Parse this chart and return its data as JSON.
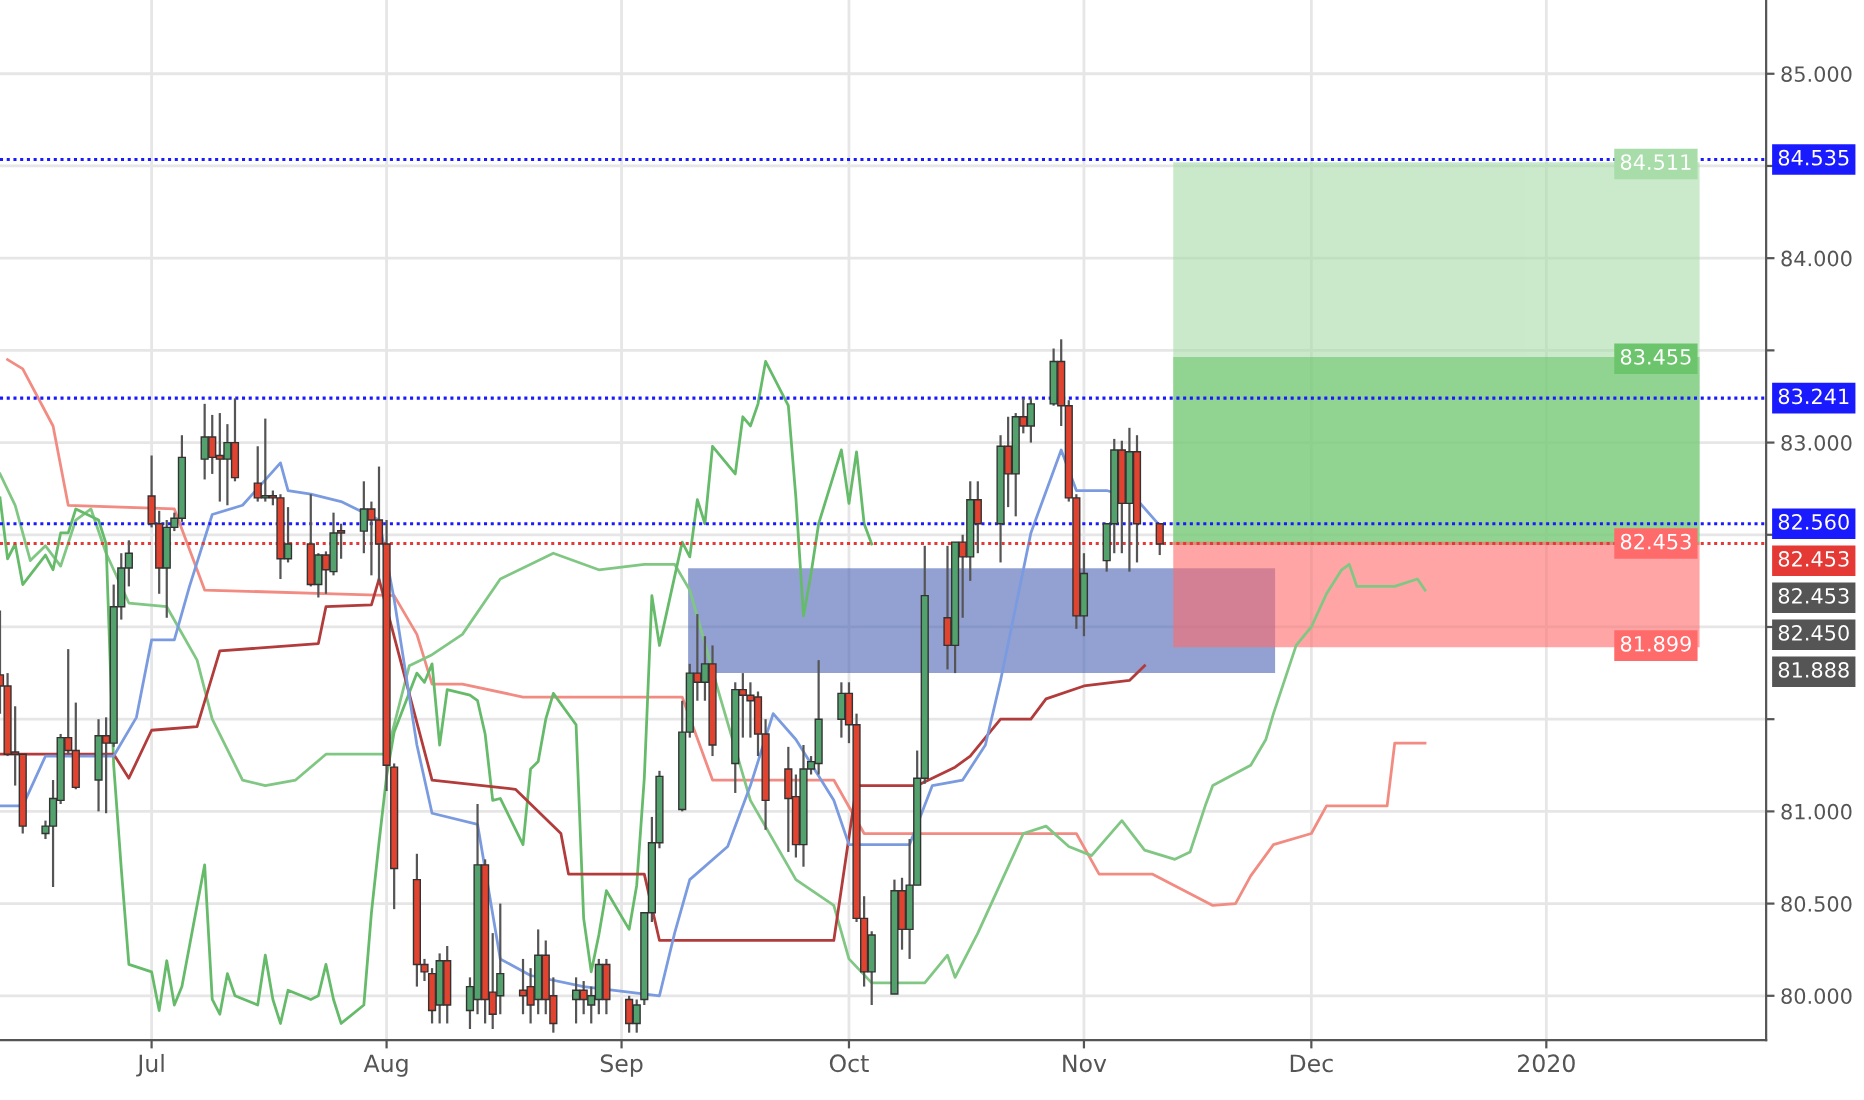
{
  "chart_data": {
    "type": "candlestick",
    "x": [
      "2019-06-11",
      "2019-06-12",
      "2019-06-13",
      "2019-06-14",
      "2019-06-17",
      "2019-06-18",
      "2019-06-19",
      "2019-06-20",
      "2019-06-21",
      "2019-06-24",
      "2019-06-25",
      "2019-06-26",
      "2019-06-27",
      "2019-06-28",
      "2019-07-01",
      "2019-07-02",
      "2019-07-03",
      "2019-07-04",
      "2019-07-05",
      "2019-07-08",
      "2019-07-09",
      "2019-07-10",
      "2019-07-11",
      "2019-07-12",
      "2019-07-15",
      "2019-07-16",
      "2019-07-17",
      "2019-07-18",
      "2019-07-19",
      "2019-07-22",
      "2019-07-23",
      "2019-07-24",
      "2019-07-25",
      "2019-07-26",
      "2019-07-29",
      "2019-07-30",
      "2019-07-31",
      "2019-08-01",
      "2019-08-02",
      "2019-08-05",
      "2019-08-06",
      "2019-08-07",
      "2019-08-08",
      "2019-08-09",
      "2019-08-12",
      "2019-08-13",
      "2019-08-14",
      "2019-08-15",
      "2019-08-16",
      "2019-08-19",
      "2019-08-20",
      "2019-08-21",
      "2019-08-22",
      "2019-08-23",
      "2019-08-26",
      "2019-08-27",
      "2019-08-28",
      "2019-08-29",
      "2019-08-30",
      "2019-09-02",
      "2019-09-03",
      "2019-09-04",
      "2019-09-05",
      "2019-09-06",
      "2019-09-09",
      "2019-09-10",
      "2019-09-11",
      "2019-09-12",
      "2019-09-13",
      "2019-09-16",
      "2019-09-17",
      "2019-09-18",
      "2019-09-19",
      "2019-09-20",
      "2019-09-23",
      "2019-09-24",
      "2019-09-25",
      "2019-09-26",
      "2019-09-27",
      "2019-09-30",
      "2019-10-01",
      "2019-10-02",
      "2019-10-03",
      "2019-10-04",
      "2019-10-07",
      "2019-10-08",
      "2019-10-09",
      "2019-10-10",
      "2019-10-11",
      "2019-10-14",
      "2019-10-15",
      "2019-10-16",
      "2019-10-17",
      "2019-10-18",
      "2019-10-21",
      "2019-10-22",
      "2019-10-23",
      "2019-10-24",
      "2019-10-25",
      "2019-10-28",
      "2019-10-29",
      "2019-10-30",
      "2019-10-31",
      "2019-11-01",
      "2019-11-04",
      "2019-11-05",
      "2019-11-06",
      "2019-11-07",
      "2019-11-08",
      "2019-11-11"
    ],
    "ohlc": [
      [
        81.74,
        82.09,
        81.53,
        81.68
      ],
      [
        81.68,
        81.75,
        81.3,
        81.31
      ],
      [
        81.31,
        81.57,
        81.14,
        81.31
      ],
      [
        81.31,
        81.31,
        80.88,
        80.92
      ],
      [
        80.88,
        80.95,
        80.85,
        80.92
      ],
      [
        80.92,
        81.17,
        80.59,
        81.07
      ],
      [
        81.06,
        81.42,
        81.04,
        81.4
      ],
      [
        81.4,
        81.88,
        81.31,
        81.33
      ],
      [
        81.33,
        81.59,
        81.12,
        81.13
      ],
      [
        81.17,
        81.5,
        81.0,
        81.41
      ],
      [
        81.41,
        81.51,
        80.99,
        81.37
      ],
      [
        81.37,
        82.23,
        81.35,
        82.11
      ],
      [
        82.11,
        82.4,
        82.04,
        82.32
      ],
      [
        82.32,
        82.47,
        82.22,
        82.4
      ],
      [
        82.71,
        82.93,
        82.54,
        82.56
      ],
      [
        82.56,
        82.63,
        82.18,
        82.32
      ],
      [
        82.32,
        82.58,
        82.05,
        82.54
      ],
      [
        82.54,
        82.62,
        82.52,
        82.59
      ],
      [
        82.59,
        83.04,
        82.57,
        82.92
      ],
      [
        82.91,
        83.21,
        82.8,
        83.03
      ],
      [
        83.03,
        83.15,
        82.83,
        82.92
      ],
      [
        82.93,
        83.16,
        82.68,
        82.91
      ],
      [
        82.91,
        83.1,
        82.66,
        83.0
      ],
      [
        83.0,
        83.24,
        82.79,
        82.81
      ],
      [
        82.78,
        82.98,
        82.68,
        82.7
      ],
      [
        82.7,
        83.13,
        82.68,
        82.71
      ],
      [
        82.71,
        82.74,
        82.66,
        82.7
      ],
      [
        82.7,
        82.72,
        82.26,
        82.37
      ],
      [
        82.37,
        82.65,
        82.35,
        82.45
      ],
      [
        82.45,
        82.72,
        82.22,
        82.23
      ],
      [
        82.23,
        82.4,
        82.16,
        82.39
      ],
      [
        82.39,
        82.41,
        82.18,
        82.31
      ],
      [
        82.3,
        82.62,
        82.28,
        82.51
      ],
      [
        82.52,
        82.56,
        82.37,
        82.51
      ],
      [
        82.52,
        82.79,
        82.4,
        82.64
      ],
      [
        82.64,
        82.68,
        82.28,
        82.58
      ],
      [
        82.58,
        82.87,
        82.25,
        82.45
      ],
      [
        82.45,
        82.58,
        81.11,
        81.25
      ],
      [
        81.24,
        81.26,
        80.47,
        80.69
      ],
      [
        80.63,
        80.77,
        80.05,
        80.17
      ],
      [
        80.17,
        80.2,
        80.08,
        80.13
      ],
      [
        80.12,
        80.15,
        79.85,
        79.92
      ],
      [
        79.95,
        80.23,
        79.85,
        80.19
      ],
      [
        80.19,
        80.27,
        79.85,
        79.95
      ],
      [
        79.92,
        80.1,
        79.82,
        80.05
      ],
      [
        79.98,
        81.04,
        79.9,
        80.71
      ],
      [
        80.71,
        80.74,
        79.85,
        79.98
      ],
      [
        80.02,
        80.34,
        79.82,
        79.9
      ],
      [
        80.0,
        80.5,
        79.9,
        80.12
      ],
      [
        80.03,
        80.2,
        79.9,
        80.0
      ],
      [
        80.05,
        80.15,
        79.85,
        79.95
      ],
      [
        79.98,
        80.36,
        79.9,
        80.22
      ],
      [
        80.22,
        80.3,
        79.9,
        79.98
      ],
      [
        80.0,
        80.1,
        79.8,
        79.85
      ],
      [
        79.98,
        80.1,
        79.85,
        80.03
      ],
      [
        80.03,
        80.08,
        79.9,
        79.98
      ],
      [
        79.95,
        80.05,
        79.85,
        80.0
      ],
      [
        79.98,
        80.2,
        79.9,
        80.17
      ],
      [
        80.17,
        80.2,
        79.9,
        79.98
      ],
      [
        79.98,
        80.0,
        79.8,
        79.85
      ],
      [
        79.85,
        79.98,
        79.8,
        79.95
      ],
      [
        79.98,
        80.45,
        79.95,
        80.45
      ],
      [
        80.45,
        80.97,
        80.4,
        80.83
      ],
      [
        80.83,
        81.22,
        80.8,
        81.19
      ],
      [
        81.01,
        81.6,
        81.0,
        81.43
      ],
      [
        81.43,
        81.8,
        81.4,
        81.75
      ],
      [
        81.75,
        82.07,
        81.6,
        81.7
      ],
      [
        81.7,
        81.95,
        81.6,
        81.8
      ],
      [
        81.8,
        81.9,
        81.3,
        81.36
      ],
      [
        81.26,
        81.7,
        81.1,
        81.66
      ],
      [
        81.66,
        81.75,
        81.4,
        81.63
      ],
      [
        81.63,
        81.7,
        81.4,
        81.6
      ],
      [
        81.62,
        81.65,
        81.3,
        81.42
      ],
      [
        81.42,
        81.5,
        80.9,
        81.06
      ],
      [
        81.23,
        81.35,
        80.78,
        81.07
      ],
      [
        81.08,
        81.2,
        80.75,
        80.82
      ],
      [
        80.82,
        81.36,
        80.7,
        81.23
      ],
      [
        81.23,
        81.3,
        81.2,
        81.27
      ],
      [
        81.26,
        81.82,
        81.2,
        81.5
      ],
      [
        81.5,
        81.7,
        81.4,
        81.64
      ],
      [
        81.64,
        81.7,
        81.37,
        81.47
      ],
      [
        81.47,
        81.53,
        80.4,
        80.42
      ],
      [
        80.42,
        80.54,
        80.05,
        80.13
      ],
      [
        80.13,
        80.35,
        79.95,
        80.33
      ],
      [
        80.01,
        80.63,
        80.01,
        80.57
      ],
      [
        80.57,
        80.64,
        80.25,
        80.36
      ],
      [
        80.36,
        80.85,
        80.2,
        80.6
      ],
      [
        80.6,
        81.33,
        80.6,
        81.18
      ],
      [
        81.18,
        82.44,
        81.15,
        82.17
      ],
      [
        82.05,
        82.44,
        81.77,
        81.9
      ],
      [
        81.9,
        82.46,
        81.75,
        82.46
      ],
      [
        82.46,
        82.5,
        82.05,
        82.38
      ],
      [
        82.38,
        82.79,
        82.25,
        82.69
      ],
      [
        82.69,
        82.79,
        82.4,
        82.56
      ],
      [
        82.56,
        83.04,
        82.35,
        82.98
      ],
      [
        82.98,
        83.14,
        82.65,
        82.83
      ],
      [
        82.83,
        83.16,
        82.6,
        83.14
      ],
      [
        83.14,
        83.24,
        83.05,
        83.09
      ],
      [
        83.09,
        83.24,
        83.0,
        83.21
      ],
      [
        83.21,
        83.51,
        83.2,
        83.44
      ],
      [
        83.44,
        83.56,
        83.09,
        83.2
      ],
      [
        83.2,
        83.23,
        82.68,
        82.7
      ],
      [
        82.7,
        82.72,
        81.99,
        82.06
      ],
      [
        82.06,
        82.4,
        81.95,
        82.29
      ],
      [
        82.36,
        82.56,
        82.3,
        82.56
      ],
      [
        82.56,
        83.02,
        82.4,
        82.96
      ],
      [
        82.96,
        83.01,
        82.4,
        82.67
      ],
      [
        82.67,
        83.08,
        82.3,
        82.95
      ],
      [
        82.95,
        83.04,
        82.35,
        82.56
      ],
      [
        82.56,
        82.56,
        82.39,
        82.45
      ]
    ],
    "colors": [
      "#e0432f",
      "#e0432f",
      "#e0432f",
      "#e0432f",
      "#53a26d",
      "#53a26d",
      "#53a26d",
      "#e0432f",
      "#e0432f",
      "#53a26d",
      "#e0432f",
      "#53a26d",
      "#53a26d",
      "#53a26d",
      "#e0432f",
      "#e0432f",
      "#53a26d",
      "#53a26d",
      "#53a26d",
      "#53a26d",
      "#e0432f",
      "#e0432f",
      "#53a26d",
      "#e0432f",
      "#e0432f",
      "#53a26d",
      "#e0432f",
      "#e0432f",
      "#53a26d",
      "#e0432f",
      "#53a26d",
      "#e0432f",
      "#53a26d",
      "#e0432f",
      "#53a26d",
      "#e0432f",
      "#e0432f",
      "#e0432f",
      "#e0432f",
      "#e0432f",
      "#e0432f",
      "#e0432f",
      "#53a26d",
      "#e0432f",
      "#53a26d",
      "#53a26d",
      "#e0432f",
      "#e0432f",
      "#53a26d",
      "#e0432f",
      "#e0432f",
      "#53a26d",
      "#e0432f",
      "#e0432f",
      "#53a26d",
      "#e0432f",
      "#53a26d",
      "#53a26d",
      "#e0432f",
      "#e0432f",
      "#53a26d",
      "#53a26d",
      "#53a26d",
      "#53a26d",
      "#53a26d",
      "#53a26d",
      "#e0432f",
      "#53a26d",
      "#e0432f",
      "#53a26d",
      "#e0432f",
      "#e0432f",
      "#e0432f",
      "#e0432f",
      "#e0432f",
      "#e0432f",
      "#53a26d",
      "#53a26d",
      "#53a26d",
      "#53a26d",
      "#e0432f",
      "#e0432f",
      "#e0432f",
      "#53a26d",
      "#53a26d",
      "#e0432f",
      "#53a26d",
      "#53a26d",
      "#53a26d",
      "#e0432f",
      "#53a26d",
      "#e0432f",
      "#53a26d",
      "#e0432f",
      "#53a26d",
      "#e0432f",
      "#53a26d",
      "#e0432f",
      "#53a26d",
      "#53a26d",
      "#e0432f",
      "#e0432f",
      "#e0432f",
      "#53a26d",
      "#53a26d",
      "#53a26d",
      "#e0432f",
      "#53a26d",
      "#e0432f",
      "#e0432f"
    ],
    "series": [
      {
        "type": "area",
        "color": "#4a64b5",
        "x": [
          "2019-09-10",
          "2019-09-10",
          "2019-11-26",
          "2019-11-26"
        ],
        "values": [
          81.76,
          82.31,
          82.31,
          81.76
        ]
      },
      {
        "type": "area",
        "color": "#a8dca8",
        "x": [
          "2019-11-13",
          "2019-11-13",
          "2020-01-21",
          "2020-01-21"
        ],
        "values": [
          82.453,
          84.511,
          84.511,
          82.453
        ],
        "value_labels": [
          null,
          null,
          "84.511",
          null
        ]
      },
      {
        "type": "area",
        "color": "#6cc56c",
        "x": [
          "2019-11-13",
          "2019-11-13",
          "2020-01-21",
          "2020-01-21"
        ],
        "values": [
          82.453,
          83.455,
          83.455,
          82.453
        ],
        "value_labels": [
          null,
          null,
          "83.455",
          null
        ]
      },
      {
        "type": "area",
        "color": "#ff6b6b",
        "x": [
          "2019-11-13",
          "2019-11-13",
          "2020-01-21",
          "2020-01-21"
        ],
        "values": [
          81.899,
          82.453,
          82.453,
          81.899
        ],
        "value_labels": [
          null,
          null,
          "82.453",
          "81.899"
        ]
      },
      {
        "type": "line",
        "color": "#f28b82",
        "x": [
          "2019-06-12",
          "2019-06-14",
          "2019-06-18",
          "2019-06-20",
          "2019-07-04",
          "2019-07-08",
          "2019-07-25",
          "2019-08-02",
          "2019-08-05",
          "2019-08-07",
          "2019-08-11",
          "2019-08-19",
          "2019-09-09",
          "2019-09-13",
          "2019-09-29",
          "2019-10-03",
          "2019-10-31",
          "2019-11-03",
          "2019-11-10",
          "2019-11-18",
          "2019-11-21",
          "2019-11-23",
          "2019-11-26",
          "2019-12-01",
          "2019-12-03",
          "2019-12-11",
          "2019-12-12",
          "2019-12-16"
        ],
        "values": [
          83.45,
          83.4,
          83.09,
          82.66,
          82.64,
          82.2,
          82.18,
          82.17,
          81.96,
          81.69,
          81.69,
          81.62,
          81.62,
          81.17,
          81.17,
          80.88,
          80.88,
          80.66,
          80.66,
          80.49,
          80.5,
          80.65,
          80.82,
          80.88,
          81.03,
          81.03,
          81.37,
          81.37
        ]
      },
      {
        "type": "line",
        "color": "#81c784",
        "x": [
          "2019-06-11",
          "2019-06-13",
          "2019-06-15",
          "2019-06-17",
          "2019-06-19",
          "2019-06-21",
          "2019-06-23",
          "2019-06-25",
          "2019-06-28",
          "2019-07-03",
          "2019-07-07",
          "2019-07-09",
          "2019-07-13",
          "2019-07-16",
          "2019-07-20",
          "2019-07-24",
          "2019-07-29",
          "2019-08-01",
          "2019-08-04",
          "2019-08-07",
          "2019-08-11",
          "2019-08-16",
          "2019-08-23",
          "2019-08-29",
          "2019-09-04",
          "2019-09-08",
          "2019-09-10",
          "2019-09-14",
          "2019-09-18",
          "2019-09-24",
          "2019-09-29",
          "2019-10-01",
          "2019-10-04",
          "2019-10-11",
          "2019-10-14",
          "2019-10-15",
          "2019-10-18",
          "2019-10-24",
          "2019-10-27",
          "2019-10-30",
          "2019-11-02",
          "2019-11-06",
          "2019-11-09",
          "2019-11-13",
          "2019-11-15",
          "2019-11-17",
          "2019-11-18",
          "2019-11-23",
          "2019-11-25",
          "2019-11-26",
          "2019-11-29",
          "2019-12-01",
          "2019-12-03",
          "2019-12-05",
          "2019-12-06",
          "2019-12-07",
          "2019-12-12",
          "2019-12-15",
          "2019-12-16"
        ],
        "values": [
          82.83,
          82.66,
          82.36,
          82.44,
          82.33,
          82.58,
          82.64,
          82.4,
          82.13,
          82.11,
          81.82,
          81.5,
          81.17,
          81.14,
          81.17,
          81.31,
          81.31,
          81.31,
          81.79,
          81.85,
          81.96,
          82.26,
          82.4,
          82.31,
          82.34,
          82.34,
          82.2,
          81.62,
          81.06,
          80.63,
          80.49,
          80.2,
          80.07,
          80.07,
          80.22,
          80.1,
          80.34,
          80.88,
          80.92,
          80.81,
          80.76,
          80.95,
          80.79,
          80.74,
          80.78,
          81.03,
          81.14,
          81.25,
          81.39,
          81.53,
          81.9,
          82.0,
          82.18,
          82.31,
          82.34,
          82.22,
          82.22,
          82.26,
          82.2
        ]
      },
      {
        "type": "line",
        "color": "#66bb6a",
        "x": [
          "2019-06-11",
          "2019-06-12",
          "2019-06-13",
          "2019-06-14",
          "2019-06-17",
          "2019-06-18",
          "2019-06-19",
          "2019-06-20",
          "2019-06-21",
          "2019-06-24",
          "2019-06-25",
          "2019-06-26",
          "2019-06-27",
          "2019-06-28",
          "2019-07-01",
          "2019-07-02",
          "2019-07-03",
          "2019-07-04",
          "2019-07-05",
          "2019-07-08",
          "2019-07-09",
          "2019-07-10",
          "2019-07-11",
          "2019-07-12",
          "2019-07-15",
          "2019-07-16",
          "2019-07-17",
          "2019-07-18",
          "2019-07-19",
          "2019-07-22",
          "2019-07-23",
          "2019-07-24",
          "2019-07-25",
          "2019-07-26",
          "2019-07-29",
          "2019-07-30",
          "2019-07-31",
          "2019-08-01",
          "2019-08-02",
          "2019-08-05",
          "2019-08-06",
          "2019-08-07",
          "2019-08-08",
          "2019-08-09",
          "2019-08-12",
          "2019-08-13",
          "2019-08-14",
          "2019-08-15",
          "2019-08-16",
          "2019-08-19",
          "2019-08-20",
          "2019-08-21",
          "2019-08-22",
          "2019-08-23",
          "2019-08-26",
          "2019-08-27",
          "2019-08-28",
          "2019-08-29",
          "2019-08-30",
          "2019-09-02",
          "2019-09-03",
          "2019-09-04",
          "2019-09-05",
          "2019-09-06",
          "2019-09-09",
          "2019-09-10",
          "2019-09-11",
          "2019-09-12",
          "2019-09-13",
          "2019-09-16",
          "2019-09-17",
          "2019-09-18",
          "2019-09-19",
          "2019-09-20",
          "2019-09-23",
          "2019-09-24",
          "2019-09-25",
          "2019-09-26",
          "2019-09-27",
          "2019-09-30",
          "2019-10-01",
          "2019-10-02",
          "2019-10-03",
          "2019-10-04"
        ],
        "values": [
          82.7,
          82.37,
          82.45,
          82.23,
          82.39,
          82.31,
          82.51,
          82.51,
          82.64,
          82.58,
          82.45,
          81.25,
          80.69,
          80.17,
          80.13,
          79.92,
          80.19,
          79.95,
          80.05,
          80.71,
          79.98,
          79.9,
          80.12,
          80.0,
          79.95,
          80.22,
          79.98,
          79.85,
          80.03,
          79.98,
          80.0,
          80.17,
          79.98,
          79.85,
          79.95,
          80.45,
          80.83,
          81.19,
          81.43,
          81.75,
          81.7,
          81.8,
          81.36,
          81.66,
          81.63,
          81.6,
          81.42,
          81.06,
          81.07,
          80.82,
          81.23,
          81.27,
          81.5,
          81.64,
          81.47,
          80.42,
          80.13,
          80.33,
          80.57,
          80.36,
          80.6,
          81.18,
          82.17,
          81.9,
          82.46,
          82.38,
          82.69,
          82.56,
          82.98,
          82.83,
          83.14,
          83.09,
          83.21,
          83.44,
          83.2,
          82.7,
          82.06,
          82.29,
          82.56,
          82.96,
          82.67,
          82.95,
          82.56,
          82.45
        ]
      },
      {
        "type": "line",
        "color": "#b23b3b",
        "x": [
          "2019-06-11",
          "2019-06-26",
          "2019-06-28",
          "2019-07-01",
          "2019-07-07",
          "2019-07-10",
          "2019-07-23",
          "2019-07-24",
          "2019-07-30",
          "2019-07-31",
          "2019-08-07",
          "2019-08-18",
          "2019-08-24",
          "2019-08-25",
          "2019-09-04",
          "2019-09-06",
          "2019-09-29",
          "2019-10-02",
          "2019-10-10",
          "2019-10-15",
          "2019-10-17",
          "2019-10-21",
          "2019-10-25",
          "2019-10-27",
          "2019-11-01",
          "2019-11-07",
          "2019-11-09"
        ],
        "values": [
          81.31,
          81.31,
          81.18,
          81.44,
          81.46,
          81.87,
          81.91,
          82.11,
          82.12,
          82.26,
          81.17,
          81.12,
          80.88,
          80.66,
          80.66,
          80.3,
          80.3,
          81.14,
          81.14,
          81.24,
          81.3,
          81.5,
          81.5,
          81.61,
          81.68,
          81.71,
          81.79
        ]
      },
      {
        "type": "line",
        "color": "#7b9be0",
        "x": [
          "2019-06-11",
          "2019-06-14",
          "2019-06-17",
          "2019-06-26",
          "2019-06-29",
          "2019-07-01",
          "2019-07-04",
          "2019-07-06",
          "2019-07-09",
          "2019-07-13",
          "2019-07-18",
          "2019-07-19",
          "2019-07-22",
          "2019-07-26",
          "2019-07-31",
          "2019-08-02",
          "2019-08-05",
          "2019-08-07",
          "2019-08-13",
          "2019-08-16",
          "2019-08-20",
          "2019-08-27",
          "2019-09-06",
          "2019-09-08",
          "2019-09-10",
          "2019-09-15",
          "2019-09-18",
          "2019-09-21",
          "2019-09-24",
          "2019-09-29",
          "2019-10-01",
          "2019-10-09",
          "2019-10-12",
          "2019-10-16",
          "2019-10-19",
          "2019-10-21",
          "2019-10-25",
          "2019-10-29",
          "2019-10-31",
          "2019-11-04",
          "2019-11-08",
          "2019-11-11"
        ],
        "values": [
          81.03,
          81.03,
          81.3,
          81.3,
          81.51,
          81.93,
          81.93,
          82.22,
          82.61,
          82.66,
          82.89,
          82.74,
          82.72,
          82.68,
          82.58,
          82.15,
          81.36,
          80.99,
          80.93,
          80.2,
          80.11,
          80.05,
          80.0,
          80.34,
          80.63,
          80.81,
          81.14,
          81.53,
          81.39,
          81.06,
          80.82,
          80.82,
          81.14,
          81.17,
          81.36,
          81.71,
          82.51,
          82.96,
          82.74,
          82.74,
          82.69,
          82.55
        ]
      }
    ],
    "ref_lines": [
      {
        "axis": "y",
        "value": 84.535,
        "color": "#1a1aff",
        "line_style": "dotted",
        "label": "84.535"
      },
      {
        "axis": "y",
        "value": 83.241,
        "color": "#1a1aff",
        "line_style": "dotted",
        "label": "83.241"
      },
      {
        "axis": "y",
        "value": 82.56,
        "color": "#1a1aff",
        "line_style": "dotted",
        "label": "82.560"
      },
      {
        "axis": "y",
        "value": 82.453,
        "color": "#e53935",
        "line_style": "dotted",
        "label": "82.453"
      }
    ],
    "annotations": [
      "82.453",
      "82.450",
      "81.888"
    ],
    "xlim": [
      "2019-06-11",
      "2020-01-30"
    ],
    "xticks": [
      {
        "value": "2019-07-01",
        "label": "Jul"
      },
      {
        "value": "2019-08-01",
        "label": "Aug"
      },
      {
        "value": "2019-09-01",
        "label": "Sep"
      },
      {
        "value": "2019-10-01",
        "label": "Oct"
      },
      {
        "value": "2019-11-01",
        "label": "Nov"
      },
      {
        "value": "2019-12-01",
        "label": "Dec"
      },
      {
        "value": "2020-01-01",
        "label": "2020"
      }
    ],
    "ylim": [
      79.76,
      85.4
    ],
    "yticks": [
      {
        "value": 80,
        "label": "80.000"
      },
      {
        "value": 80.5,
        "label": "80.500"
      },
      {
        "value": 81,
        "label": "81.000"
      },
      {
        "value": 81.5,
        "label": null
      },
      {
        "value": 82,
        "label": null
      },
      {
        "value": 82.5,
        "label": null
      },
      {
        "value": 83,
        "label": "83.000"
      },
      {
        "value": 83.5,
        "label": null
      },
      {
        "value": 84,
        "label": "84.000"
      },
      {
        "value": 84.5,
        "label": null
      },
      {
        "value": 85,
        "label": "85.000"
      }
    ],
    "grid": true
  }
}
